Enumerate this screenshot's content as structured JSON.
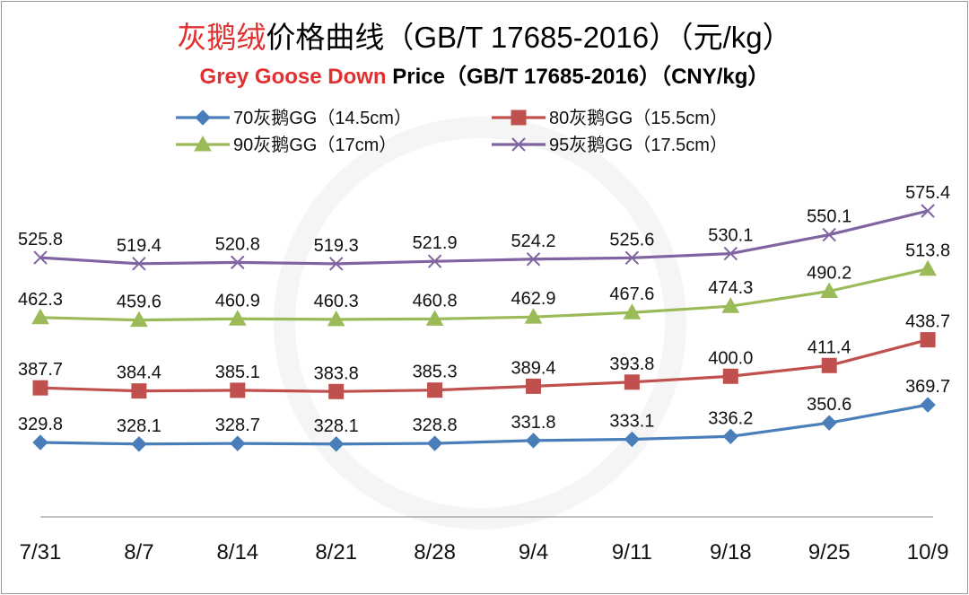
{
  "title_parts": {
    "cn_red": "灰鹅绒",
    "cn_rest": "价格曲线（GB/T 17685-2016）（元/kg）",
    "en_red": "Grey Goose Down",
    "en_rest": " Price（GB/T 17685-2016）（CNY/kg）"
  },
  "chart_data": {
    "type": "line",
    "title": "灰鹅绒价格曲线（GB/T 17685-2016）（元/kg）",
    "subtitle": "Grey Goose Down Price（GB/T 17685-2016）（CNY/kg）",
    "categories": [
      "7/31",
      "8/7",
      "8/14",
      "8/21",
      "8/28",
      "9/4",
      "9/11",
      "9/18",
      "9/25",
      "10/9"
    ],
    "xlabel": "",
    "ylabel": "",
    "ylim": [
      300,
      600
    ],
    "grid": false,
    "legend_position": "top",
    "series": [
      {
        "name": "70灰鹅GG（14.5cm）",
        "color": "#4a7ebb",
        "marker": "diamond",
        "values": [
          329.8,
          328.1,
          328.7,
          328.1,
          328.8,
          331.8,
          333.1,
          336.2,
          350.6,
          369.7
        ],
        "labels": [
          "329.8",
          "328.1",
          "328.7",
          "328.1",
          "328.8",
          "331.8",
          "333.1",
          "336.2",
          "350.6",
          "369.7"
        ]
      },
      {
        "name": "80灰鹅GG（15.5cm）",
        "color": "#c0504d",
        "marker": "square",
        "values": [
          387.7,
          384.4,
          385.1,
          383.8,
          385.3,
          389.4,
          393.8,
          400.0,
          411.4,
          438.7
        ],
        "labels": [
          "387.7",
          "384.4",
          "385.1",
          "383.8",
          "385.3",
          "389.4",
          "393.8",
          "400.0",
          "411.4",
          "438.7"
        ]
      },
      {
        "name": "90灰鹅GG（17cm）",
        "color": "#9bbb59",
        "marker": "triangle",
        "values": [
          462.3,
          459.6,
          460.9,
          460.3,
          460.8,
          462.9,
          467.6,
          474.3,
          490.2,
          513.8
        ],
        "labels": [
          "462.3",
          "459.6",
          "460.9",
          "460.3",
          "460.8",
          "462.9",
          "467.6",
          "474.3",
          "490.2",
          "513.8"
        ]
      },
      {
        "name": "95灰鹅GG（17.5cm）",
        "color": "#8064a2",
        "marker": "x",
        "values": [
          525.8,
          519.4,
          520.8,
          519.3,
          521.9,
          524.2,
          525.6,
          530.1,
          550.1,
          575.4
        ],
        "labels": [
          "525.8",
          "519.4",
          "520.8",
          "519.3",
          "521.9",
          "524.2",
          "525.6",
          "530.1",
          "550.1",
          "575.4"
        ]
      }
    ]
  }
}
